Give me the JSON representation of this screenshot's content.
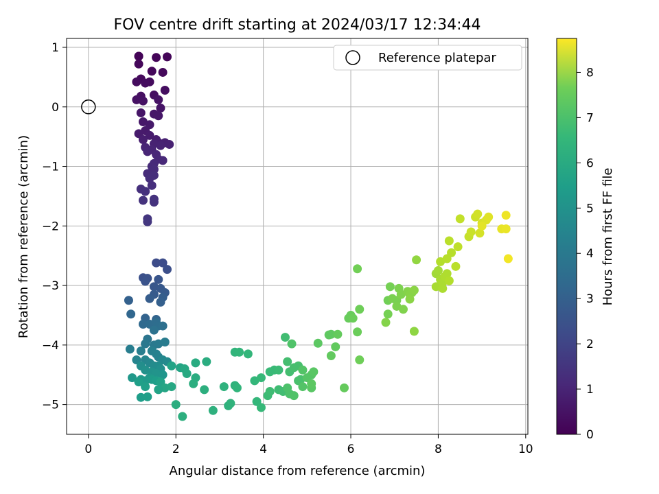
{
  "chart_data": {
    "type": "scatter",
    "title": "FOV centre drift starting at 2024/03/17 12:34:44",
    "xlabel": "Angular distance from reference (arcmin)",
    "ylabel": "Rotation from reference (arcmin)",
    "xlim": [
      -0.5,
      10.05
    ],
    "ylim": [
      -5.5,
      1.15
    ],
    "xticks": [
      0,
      2,
      4,
      6,
      8,
      10
    ],
    "yticks": [
      -5,
      -4,
      -3,
      -2,
      -1,
      0,
      1
    ],
    "grid": true,
    "legend": {
      "placement": "top-right",
      "entries": [
        "Reference platepar"
      ]
    },
    "colorbar": {
      "label": "Hours from first FF file",
      "min": 0,
      "max": 8.75,
      "ticks": [
        0,
        1,
        2,
        3,
        4,
        5,
        6,
        7,
        8
      ],
      "colormap": "viridis"
    },
    "reference_point": {
      "x": 0,
      "y": 0
    },
    "points": [
      [
        1.15,
        0.85,
        0.05
      ],
      [
        1.15,
        0.85,
        0.07
      ],
      [
        1.55,
        0.83,
        0.1
      ],
      [
        1.8,
        0.84,
        0.12
      ],
      [
        1.15,
        0.72,
        0.15
      ],
      [
        1.45,
        0.6,
        0.18
      ],
      [
        1.7,
        0.58,
        0.2
      ],
      [
        1.2,
        0.47,
        0.22
      ],
      [
        1.4,
        0.42,
        0.25
      ],
      [
        1.1,
        0.42,
        0.27
      ],
      [
        1.3,
        0.4,
        0.3
      ],
      [
        1.75,
        0.28,
        0.32
      ],
      [
        1.5,
        0.2,
        0.35
      ],
      [
        1.2,
        0.18,
        0.38
      ],
      [
        1.1,
        0.12,
        0.4
      ],
      [
        1.25,
        0.1,
        0.42
      ],
      [
        1.6,
        0.12,
        0.45
      ],
      [
        1.65,
        -0.02,
        0.48
      ],
      [
        1.2,
        -0.1,
        0.5
      ],
      [
        1.5,
        -0.12,
        0.53
      ],
      [
        1.6,
        -0.15,
        0.55
      ],
      [
        1.25,
        -0.25,
        0.58
      ],
      [
        1.4,
        -0.3,
        0.6
      ],
      [
        1.3,
        -0.4,
        0.62
      ],
      [
        1.15,
        -0.45,
        0.65
      ],
      [
        1.4,
        -0.48,
        0.68
      ],
      [
        1.55,
        -0.55,
        0.7
      ],
      [
        1.25,
        -0.55,
        0.72
      ],
      [
        1.6,
        -0.6,
        0.75
      ],
      [
        1.75,
        -0.6,
        0.78
      ],
      [
        1.85,
        -0.63,
        0.8
      ],
      [
        1.5,
        -0.62,
        0.82
      ],
      [
        1.65,
        -0.65,
        0.85
      ],
      [
        1.3,
        -0.68,
        0.88
      ],
      [
        1.45,
        -0.72,
        0.9
      ],
      [
        1.35,
        -0.75,
        0.93
      ],
      [
        1.55,
        -0.8,
        0.95
      ],
      [
        1.6,
        -0.88,
        0.97
      ],
      [
        1.7,
        -0.9,
        1.0
      ],
      [
        1.5,
        -0.95,
        1.03
      ],
      [
        1.45,
        -1.0,
        1.05
      ],
      [
        1.5,
        -1.05,
        1.08
      ],
      [
        1.35,
        -1.12,
        1.1
      ],
      [
        1.5,
        -1.15,
        1.13
      ],
      [
        1.4,
        -1.2,
        1.15
      ],
      [
        1.45,
        -1.32,
        1.18
      ],
      [
        1.2,
        -1.38,
        1.2
      ],
      [
        1.3,
        -1.42,
        1.23
      ],
      [
        1.5,
        -1.55,
        1.25
      ],
      [
        1.25,
        -1.57,
        1.28
      ],
      [
        1.5,
        -1.6,
        1.3
      ],
      [
        1.35,
        -1.88,
        1.35
      ],
      [
        1.35,
        -1.93,
        1.4
      ],
      [
        1.55,
        -2.62,
        2.0
      ],
      [
        1.7,
        -2.62,
        2.05
      ],
      [
        1.8,
        -2.73,
        2.1
      ],
      [
        1.25,
        -2.87,
        2.15
      ],
      [
        1.35,
        -2.88,
        2.2
      ],
      [
        1.3,
        -2.93,
        2.25
      ],
      [
        1.6,
        -2.9,
        2.3
      ],
      [
        1.5,
        -3.02,
        2.35
      ],
      [
        1.65,
        -3.05,
        2.4
      ],
      [
        1.75,
        -3.12,
        2.45
      ],
      [
        1.5,
        -3.15,
        2.5
      ],
      [
        1.4,
        -3.22,
        2.55
      ],
      [
        1.7,
        -3.2,
        2.6
      ],
      [
        1.65,
        -3.28,
        2.65
      ],
      [
        0.92,
        -3.25,
        2.7
      ],
      [
        1.3,
        -3.55,
        2.75
      ],
      [
        1.55,
        -3.57,
        2.8
      ],
      [
        0.97,
        -3.48,
        2.9
      ],
      [
        1.25,
        -3.65,
        3.0
      ],
      [
        1.4,
        -3.65,
        3.05
      ],
      [
        1.55,
        -3.62,
        3.1
      ],
      [
        1.6,
        -3.68,
        3.15
      ],
      [
        1.7,
        -3.68,
        3.2
      ],
      [
        1.5,
        -3.75,
        3.3
      ],
      [
        1.35,
        -3.9,
        3.4
      ],
      [
        1.3,
        -3.98,
        3.5
      ],
      [
        1.5,
        -4.0,
        3.55
      ],
      [
        1.6,
        -3.98,
        3.6
      ],
      [
        1.75,
        -3.95,
        3.65
      ],
      [
        0.95,
        -4.07,
        3.7
      ],
      [
        1.2,
        -4.1,
        3.75
      ],
      [
        1.45,
        -4.1,
        3.8
      ],
      [
        1.55,
        -4.15,
        3.85
      ],
      [
        1.6,
        -4.2,
        3.9
      ],
      [
        1.1,
        -4.25,
        3.95
      ],
      [
        1.3,
        -4.25,
        4.0
      ],
      [
        1.4,
        -4.3,
        4.05
      ],
      [
        1.7,
        -4.25,
        4.1
      ],
      [
        1.8,
        -4.28,
        4.15
      ],
      [
        1.5,
        -4.35,
        4.2
      ],
      [
        1.6,
        -4.35,
        4.25
      ],
      [
        1.2,
        -4.35,
        4.3
      ],
      [
        1.65,
        -4.4,
        4.35
      ],
      [
        1.3,
        -4.42,
        4.4
      ],
      [
        1.45,
        -4.45,
        4.45
      ],
      [
        1.55,
        -4.48,
        4.5
      ],
      [
        1.7,
        -4.5,
        4.55
      ],
      [
        1.4,
        -4.55,
        4.6
      ],
      [
        1.0,
        -4.55,
        4.65
      ],
      [
        1.2,
        -4.58,
        4.7
      ],
      [
        1.3,
        -4.6,
        4.75
      ],
      [
        1.45,
        -4.58,
        4.8
      ],
      [
        1.55,
        -4.6,
        4.85
      ],
      [
        1.15,
        -4.62,
        4.9
      ],
      [
        1.3,
        -4.7,
        4.95
      ],
      [
        1.65,
        -4.62,
        5.0
      ],
      [
        1.9,
        -4.35,
        5.05
      ],
      [
        2.1,
        -4.38,
        5.1
      ],
      [
        1.75,
        -4.72,
        5.15
      ],
      [
        1.9,
        -4.7,
        5.2
      ],
      [
        2.2,
        -4.4,
        5.25
      ],
      [
        2.25,
        -4.48,
        5.3
      ],
      [
        1.2,
        -4.88,
        4.85
      ],
      [
        1.35,
        -4.87,
        4.9
      ],
      [
        1.6,
        -4.75,
        5.05
      ],
      [
        2.45,
        -4.3,
        5.35
      ],
      [
        2.7,
        -4.28,
        5.4
      ],
      [
        2.45,
        -4.55,
        5.4
      ],
      [
        2.4,
        -4.65,
        5.45
      ],
      [
        2.65,
        -4.75,
        5.5
      ],
      [
        2.0,
        -5.0,
        5.45
      ],
      [
        2.15,
        -5.2,
        5.5
      ],
      [
        2.85,
        -5.1,
        5.55
      ],
      [
        3.1,
        -4.7,
        5.6
      ],
      [
        3.2,
        -5.02,
        5.6
      ],
      [
        3.25,
        -4.98,
        5.65
      ],
      [
        3.35,
        -4.68,
        5.65
      ],
      [
        3.4,
        -4.72,
        5.7
      ],
      [
        3.35,
        -4.12,
        5.7
      ],
      [
        3.45,
        -4.12,
        5.75
      ],
      [
        3.65,
        -4.15,
        5.75
      ],
      [
        3.8,
        -4.6,
        5.8
      ],
      [
        3.85,
        -4.95,
        5.8
      ],
      [
        3.95,
        -4.55,
        5.85
      ],
      [
        3.95,
        -5.05,
        5.85
      ],
      [
        4.15,
        -4.45,
        5.9
      ],
      [
        4.25,
        -4.42,
        5.9
      ],
      [
        4.35,
        -4.42,
        5.95
      ],
      [
        4.1,
        -4.85,
        5.95
      ],
      [
        4.15,
        -4.78,
        6.0
      ],
      [
        4.35,
        -4.75,
        6.0
      ],
      [
        4.45,
        -4.78,
        6.05
      ],
      [
        4.5,
        -3.87,
        6.05
      ],
      [
        4.55,
        -4.28,
        6.1
      ],
      [
        4.6,
        -4.45,
        6.1
      ],
      [
        4.7,
        -4.38,
        6.15
      ],
      [
        4.8,
        -4.35,
        6.15
      ],
      [
        4.8,
        -4.6,
        6.2
      ],
      [
        4.85,
        -4.58,
        6.2
      ],
      [
        4.55,
        -4.72,
        6.25
      ],
      [
        4.6,
        -4.82,
        6.25
      ],
      [
        4.7,
        -4.85,
        6.3
      ],
      [
        4.65,
        -3.98,
        6.3
      ],
      [
        4.9,
        -4.42,
        6.35
      ],
      [
        4.9,
        -4.7,
        6.35
      ],
      [
        5.0,
        -4.55,
        6.4
      ],
      [
        5.1,
        -4.5,
        6.4
      ],
      [
        5.15,
        -4.45,
        6.45
      ],
      [
        5.1,
        -4.72,
        6.45
      ],
      [
        5.1,
        -4.65,
        6.5
      ],
      [
        5.25,
        -3.97,
        6.5
      ],
      [
        5.5,
        -3.83,
        6.55
      ],
      [
        5.55,
        -3.82,
        6.55
      ],
      [
        5.55,
        -4.18,
        6.6
      ],
      [
        5.65,
        -4.03,
        6.6
      ],
      [
        5.7,
        -3.82,
        6.65
      ],
      [
        5.85,
        -4.72,
        6.65
      ],
      [
        6.0,
        -3.5,
        6.7
      ],
      [
        5.95,
        -3.55,
        6.7
      ],
      [
        6.05,
        -3.55,
        6.75
      ],
      [
        6.15,
        -3.78,
        6.75
      ],
      [
        6.2,
        -3.4,
        6.8
      ],
      [
        6.2,
        -4.25,
        6.8
      ],
      [
        6.15,
        -2.72,
        6.85
      ],
      [
        6.85,
        -3.25,
        6.85
      ],
      [
        6.9,
        -3.02,
        6.9
      ],
      [
        6.85,
        -3.48,
        6.9
      ],
      [
        6.95,
        -3.22,
        6.95
      ],
      [
        7.05,
        -3.25,
        6.95
      ],
      [
        7.1,
        -3.05,
        7.0
      ],
      [
        7.05,
        -3.35,
        7.0
      ],
      [
        7.15,
        -3.15,
        7.05
      ],
      [
        7.2,
        -3.4,
        7.05
      ],
      [
        6.8,
        -3.62,
        7.1
      ],
      [
        7.3,
        -3.1,
        7.1
      ],
      [
        7.35,
        -3.15,
        7.15
      ],
      [
        7.4,
        -3.12,
        7.15
      ],
      [
        7.45,
        -3.08,
        7.2
      ],
      [
        7.35,
        -3.23,
        7.2
      ],
      [
        7.45,
        -3.77,
        7.25
      ],
      [
        7.5,
        -2.57,
        7.3
      ],
      [
        7.95,
        -2.8,
        7.5
      ],
      [
        8.0,
        -2.75,
        7.55
      ],
      [
        7.95,
        -3.02,
        7.6
      ],
      [
        8.05,
        -2.9,
        7.6
      ],
      [
        8.1,
        -3.05,
        7.65
      ],
      [
        8.1,
        -2.95,
        7.65
      ],
      [
        8.15,
        -2.85,
        7.7
      ],
      [
        8.2,
        -2.8,
        7.7
      ],
      [
        8.25,
        -2.92,
        7.75
      ],
      [
        8.05,
        -2.6,
        7.75
      ],
      [
        8.2,
        -2.55,
        7.8
      ],
      [
        8.3,
        -2.45,
        7.8
      ],
      [
        8.4,
        -2.68,
        7.85
      ],
      [
        8.25,
        -2.25,
        7.85
      ],
      [
        8.45,
        -2.35,
        7.9
      ],
      [
        8.5,
        -1.88,
        7.95
      ],
      [
        8.7,
        -2.18,
        8.0
      ],
      [
        8.75,
        -2.1,
        8.05
      ],
      [
        8.85,
        -1.85,
        8.1
      ],
      [
        8.9,
        -1.8,
        8.15
      ],
      [
        8.95,
        -2.12,
        8.2
      ],
      [
        9.0,
        -1.95,
        8.25
      ],
      [
        9.1,
        -1.9,
        8.3
      ],
      [
        9.15,
        -1.85,
        8.35
      ],
      [
        9.0,
        -2.0,
        8.4
      ],
      [
        9.45,
        -2.05,
        8.45
      ],
      [
        9.55,
        -2.05,
        8.5
      ],
      [
        9.55,
        -1.82,
        8.55
      ],
      [
        9.6,
        -2.55,
        8.6
      ]
    ]
  }
}
